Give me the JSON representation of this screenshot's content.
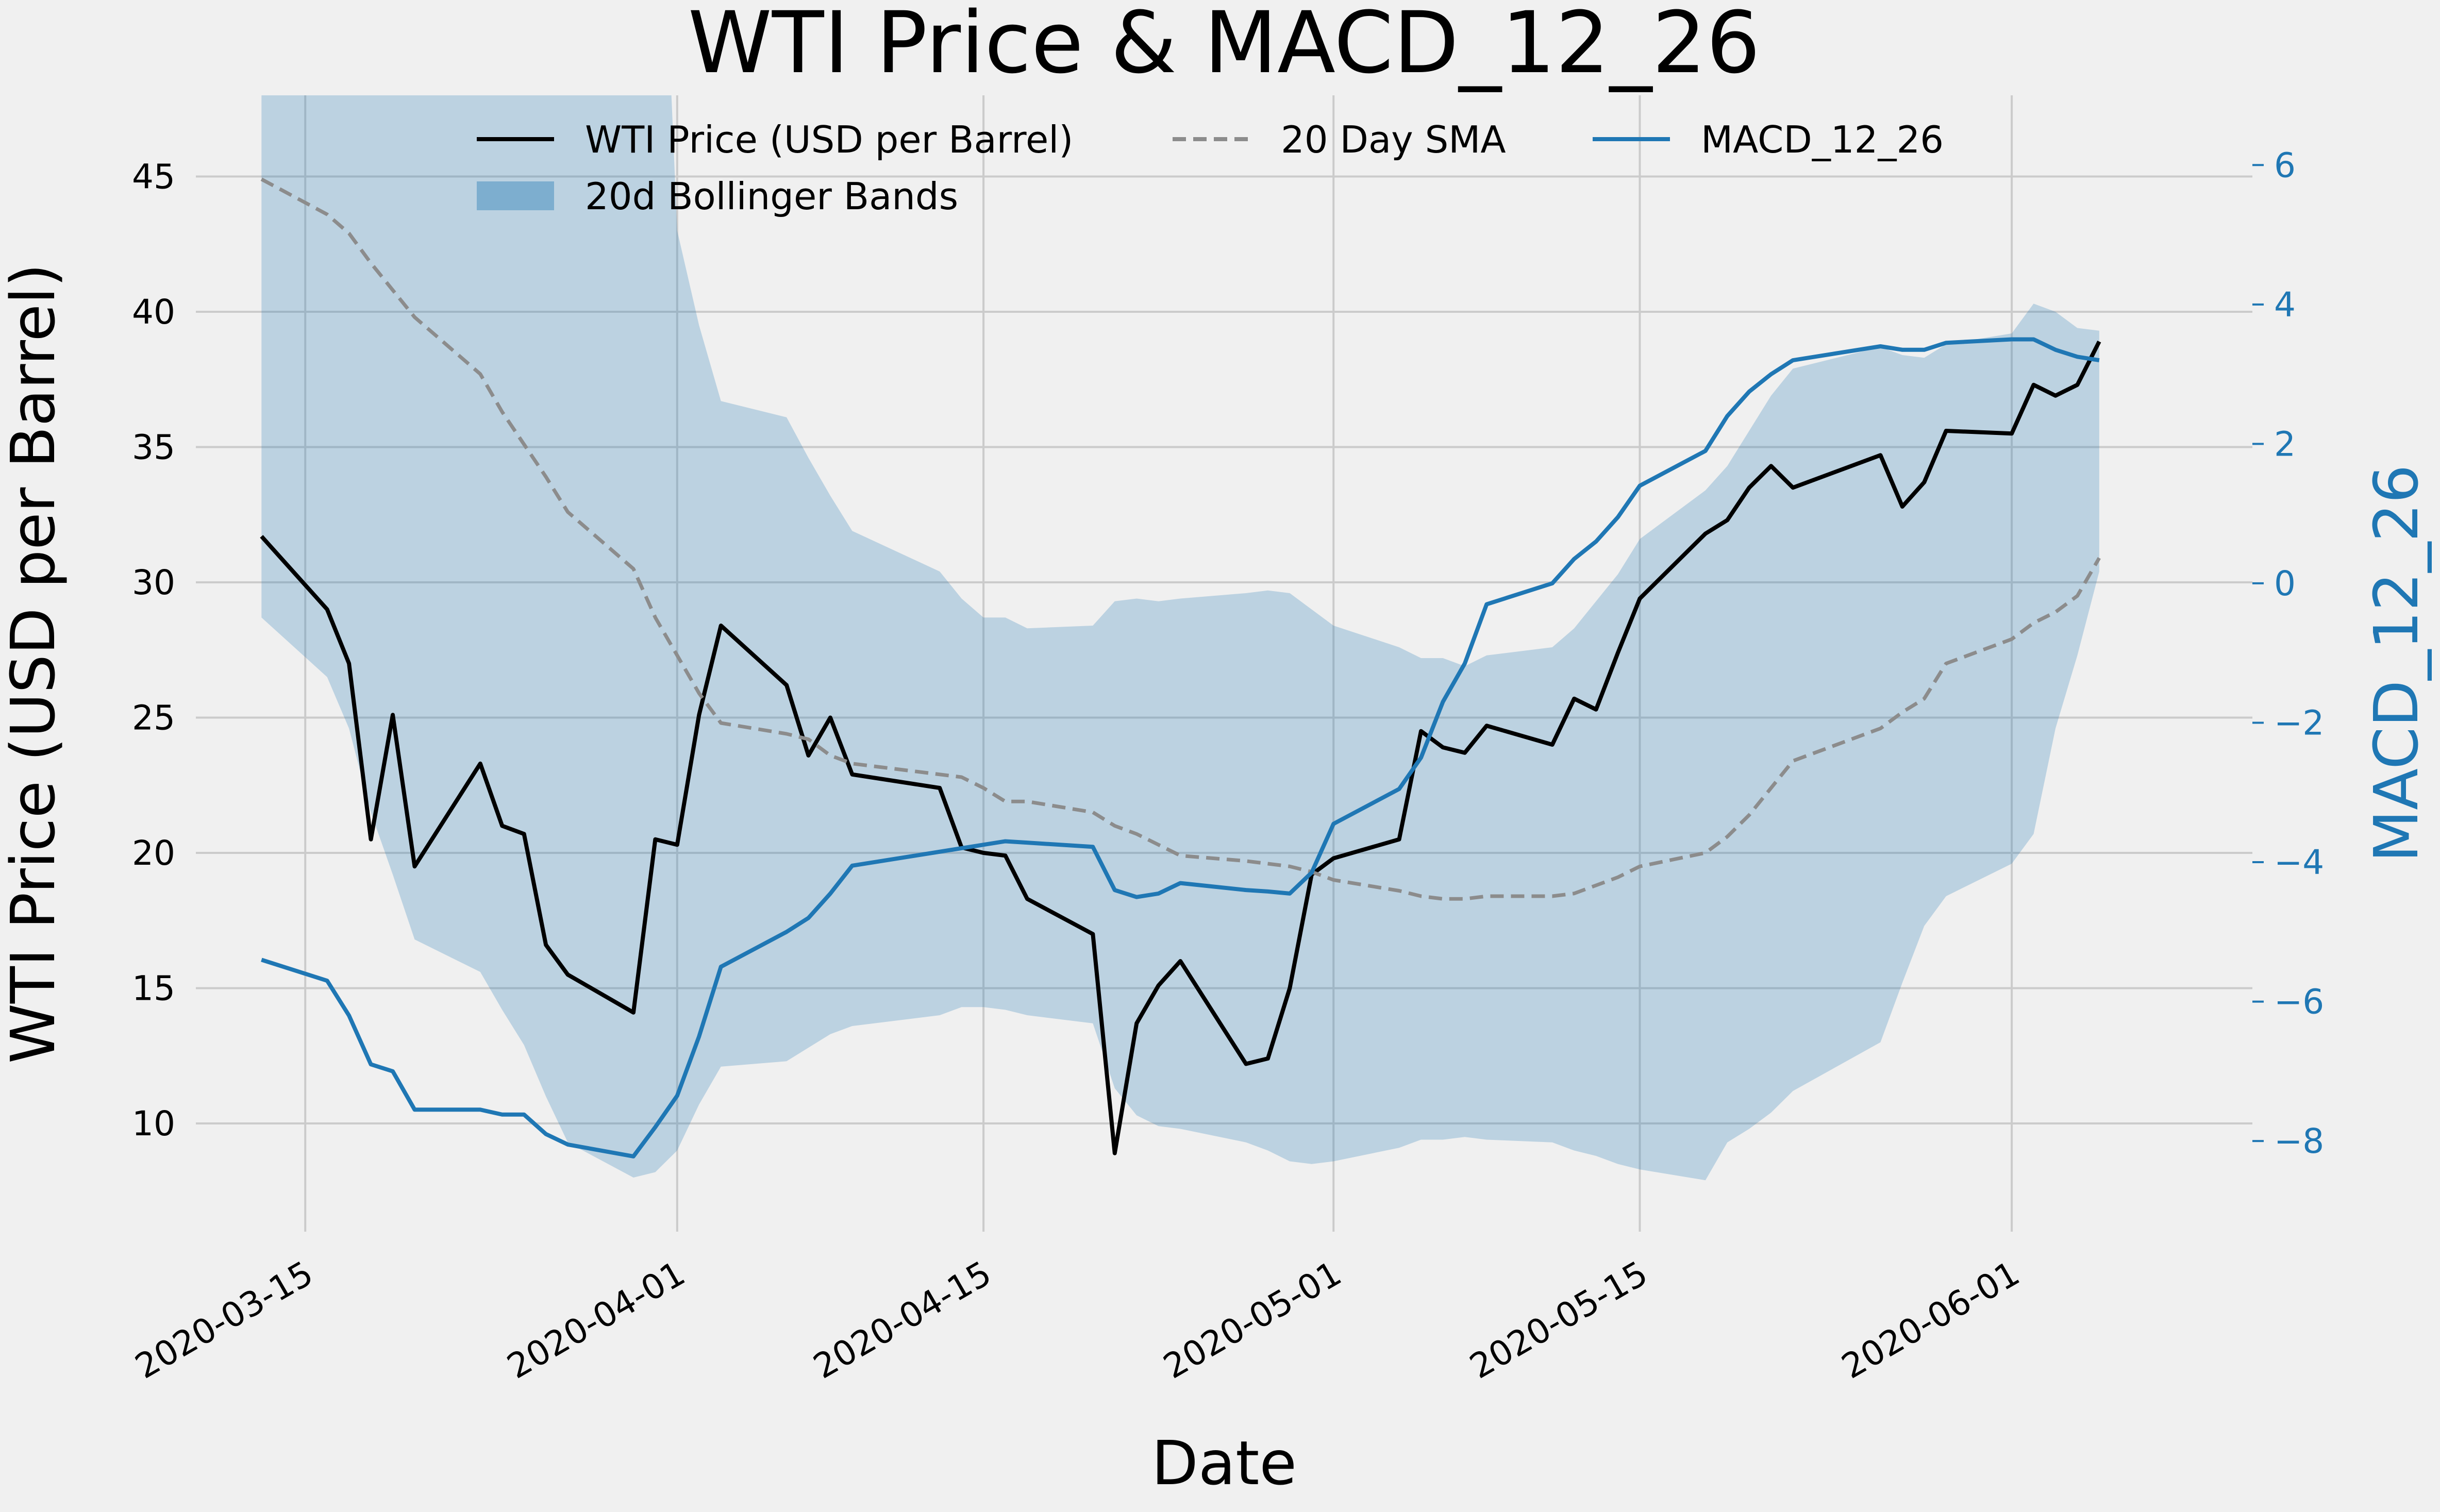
{
  "chart_data": {
    "type": "line",
    "title": "WTI Price & MACD_12_26",
    "xlabel": "Date",
    "ylabel": "WTI Price (USD per Barrel)",
    "y2label": "MACD_12_26",
    "xlim": [
      "2020-03-10",
      "2020-06-12"
    ],
    "ylim": [
      6.0,
      48.0
    ],
    "y2lim": [
      -9.3,
      7.0
    ],
    "grid": true,
    "legend_position": "top-center",
    "colors": {
      "price": "#000000",
      "sma": "#8c8c8c",
      "macd": "#1f77b4",
      "band": "#1f77b4",
      "right_axis": "#1f77b4",
      "background": "#f0f0f0",
      "grid": "#cbcbcb"
    },
    "x_ticks": [
      {
        "date": "2020-03-15",
        "label": "2020-03-15"
      },
      {
        "date": "2020-04-01",
        "label": "2020-04-01"
      },
      {
        "date": "2020-04-15",
        "label": "2020-04-15"
      },
      {
        "date": "2020-05-01",
        "label": "2020-05-01"
      },
      {
        "date": "2020-05-15",
        "label": "2020-05-15"
      },
      {
        "date": "2020-06-01",
        "label": "2020-06-01"
      }
    ],
    "y_ticks": [
      {
        "value": 10,
        "label": "10"
      },
      {
        "value": 15,
        "label": "15"
      },
      {
        "value": 20,
        "label": "20"
      },
      {
        "value": 25,
        "label": "25"
      },
      {
        "value": 30,
        "label": "30"
      },
      {
        "value": 35,
        "label": "35"
      },
      {
        "value": 40,
        "label": "40"
      },
      {
        "value": 45,
        "label": "45"
      }
    ],
    "y2_ticks": [
      {
        "value": -8,
        "label": "−8"
      },
      {
        "value": -6,
        "label": "−6"
      },
      {
        "value": -4,
        "label": "−4"
      },
      {
        "value": -2,
        "label": "−2"
      },
      {
        "value": 0,
        "label": "0"
      },
      {
        "value": 2,
        "label": "2"
      },
      {
        "value": 4,
        "label": "4"
      },
      {
        "value": 6,
        "label": "6"
      }
    ],
    "legend": [
      {
        "key": "price",
        "label": "WTI Price (USD per Barrel)",
        "style": "solid"
      },
      {
        "key": "sma",
        "label": "20 Day SMA",
        "style": "dashed"
      },
      {
        "key": "macd",
        "label": "MACD_12_26",
        "style": "solid"
      },
      {
        "key": "band",
        "label": "20d Bollinger Bands",
        "style": "patch"
      }
    ],
    "dates": [
      "2020-03-13",
      "2020-03-16",
      "2020-03-17",
      "2020-03-18",
      "2020-03-19",
      "2020-03-20",
      "2020-03-23",
      "2020-03-24",
      "2020-03-25",
      "2020-03-26",
      "2020-03-27",
      "2020-03-30",
      "2020-03-31",
      "2020-04-01",
      "2020-04-02",
      "2020-04-03",
      "2020-04-06",
      "2020-04-07",
      "2020-04-08",
      "2020-04-09",
      "2020-04-13",
      "2020-04-14",
      "2020-04-15",
      "2020-04-16",
      "2020-04-17",
      "2020-04-20",
      "2020-04-21",
      "2020-04-22",
      "2020-04-23",
      "2020-04-24",
      "2020-04-27",
      "2020-04-28",
      "2020-04-29",
      "2020-04-30",
      "2020-05-01",
      "2020-05-04",
      "2020-05-05",
      "2020-05-06",
      "2020-05-07",
      "2020-05-08",
      "2020-05-11",
      "2020-05-12",
      "2020-05-13",
      "2020-05-14",
      "2020-05-15",
      "2020-05-18",
      "2020-05-19",
      "2020-05-20",
      "2020-05-21",
      "2020-05-22",
      "2020-05-26",
      "2020-05-27",
      "2020-05-28",
      "2020-05-29",
      "2020-06-01",
      "2020-06-02",
      "2020-06-03",
      "2020-06-04",
      "2020-06-05"
    ],
    "series": [
      {
        "name": "WTI Price (USD per Barrel)",
        "key": "price",
        "axis": "left",
        "values": [
          31.7,
          29.0,
          27.0,
          20.5,
          25.1,
          19.5,
          23.3,
          21.0,
          20.7,
          16.6,
          15.5,
          14.1,
          20.5,
          20.3,
          25.1,
          28.4,
          26.2,
          23.6,
          25.0,
          22.9,
          22.4,
          20.2,
          20.0,
          19.9,
          18.3,
          17.0,
          8.9,
          13.7,
          15.1,
          16.0,
          12.2,
          12.4,
          15.0,
          19.2,
          19.8,
          20.5,
          24.5,
          23.9,
          23.7,
          24.7,
          24.0,
          25.7,
          25.3,
          27.4,
          29.4,
          31.8,
          32.3,
          33.5,
          34.3,
          33.5,
          34.7,
          32.8,
          33.7,
          35.6,
          35.5,
          37.3,
          36.9,
          37.3,
          38.9
        ]
      },
      {
        "name": "20 Day SMA",
        "key": "sma",
        "axis": "left",
        "values": [
          44.9,
          43.6,
          42.9,
          41.8,
          40.8,
          39.8,
          37.7,
          36.3,
          35.1,
          33.9,
          32.6,
          30.5,
          28.7,
          27.3,
          25.9,
          24.8,
          24.4,
          24.2,
          23.6,
          23.3,
          22.9,
          22.8,
          22.4,
          21.9,
          21.9,
          21.5,
          21.0,
          20.7,
          20.3,
          19.9,
          19.7,
          19.6,
          19.5,
          19.3,
          19.0,
          18.6,
          18.4,
          18.3,
          18.3,
          18.4,
          18.4,
          18.5,
          18.8,
          19.1,
          19.5,
          20.0,
          20.6,
          21.4,
          22.4,
          23.4,
          24.6,
          25.2,
          25.7,
          27.0,
          27.9,
          28.5,
          28.9,
          29.5,
          30.9
        ]
      },
      {
        "name": "MACD_12_26",
        "key": "macd",
        "axis": "right",
        "values": [
          -5.4,
          -5.7,
          -6.2,
          -6.9,
          -7.0,
          -7.55,
          -7.55,
          -7.62,
          -7.62,
          -7.9,
          -8.05,
          -8.22,
          -7.8,
          -7.35,
          -6.5,
          -5.5,
          -5.0,
          -4.8,
          -4.45,
          -4.05,
          -3.85,
          -3.8,
          -3.75,
          -3.7,
          -3.72,
          -3.78,
          -4.4,
          -4.5,
          -4.45,
          -4.3,
          -4.4,
          -4.42,
          -4.45,
          -4.15,
          -3.45,
          -2.95,
          -2.5,
          -1.7,
          -1.15,
          -0.3,
          -0.0,
          0.35,
          0.6,
          0.95,
          1.4,
          1.9,
          2.4,
          2.75,
          3.0,
          3.2,
          3.4,
          3.35,
          3.35,
          3.45,
          3.5,
          3.5,
          3.35,
          3.25,
          3.2
        ]
      }
    ],
    "bollinger_band": {
      "name": "20d Bollinger Bands",
      "upper": [
        60.0,
        62.0,
        62.0,
        62.0,
        62.0,
        62.0,
        62.0,
        62.0,
        62.0,
        62.0,
        62.0,
        62.0,
        62.0,
        43.0,
        39.5,
        36.7,
        36.1,
        34.6,
        33.2,
        31.9,
        30.4,
        29.4,
        28.7,
        28.7,
        28.3,
        28.4,
        29.3,
        29.4,
        29.3,
        29.4,
        29.6,
        29.7,
        29.6,
        29.0,
        28.4,
        27.6,
        27.2,
        27.2,
        26.9,
        27.3,
        27.6,
        28.3,
        29.3,
        30.3,
        31.6,
        33.4,
        34.3,
        35.6,
        36.9,
        37.9,
        38.7,
        38.4,
        38.3,
        38.8,
        39.2,
        40.3,
        40.0,
        39.4,
        39.3
      ],
      "lower": [
        28.7,
        26.5,
        24.6,
        21.5,
        19.2,
        16.8,
        15.6,
        14.2,
        12.9,
        11.0,
        9.3,
        8.0,
        8.2,
        9.0,
        10.7,
        12.1,
        12.3,
        12.8,
        13.3,
        13.6,
        14.0,
        14.3,
        14.3,
        14.2,
        14.0,
        13.7,
        11.3,
        10.3,
        9.9,
        9.8,
        9.3,
        9.0,
        8.6,
        8.5,
        8.6,
        9.1,
        9.4,
        9.4,
        9.5,
        9.4,
        9.3,
        9.0,
        8.8,
        8.5,
        8.3,
        7.9,
        9.3,
        9.8,
        10.4,
        11.2,
        13.0,
        15.2,
        17.3,
        18.4,
        19.6,
        20.7,
        24.6,
        27.3,
        30.4
      ]
    }
  }
}
